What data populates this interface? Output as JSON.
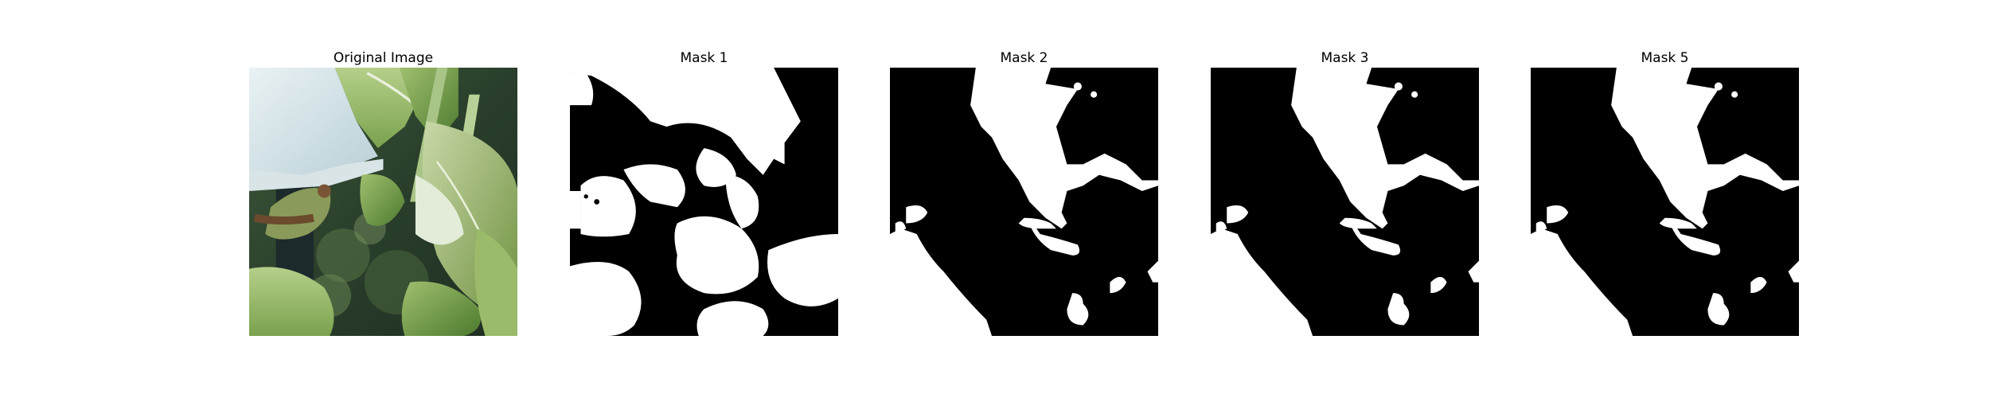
{
  "panels": [
    {
      "title": "Original Image"
    },
    {
      "title": "Mask 1"
    },
    {
      "title": "Mask 2"
    },
    {
      "title": "Mask 3"
    },
    {
      "title": "Mask 5"
    }
  ],
  "colors": {
    "mask_foreground": "#ffffff",
    "mask_background": "#000000",
    "page_background": "#ffffff"
  }
}
